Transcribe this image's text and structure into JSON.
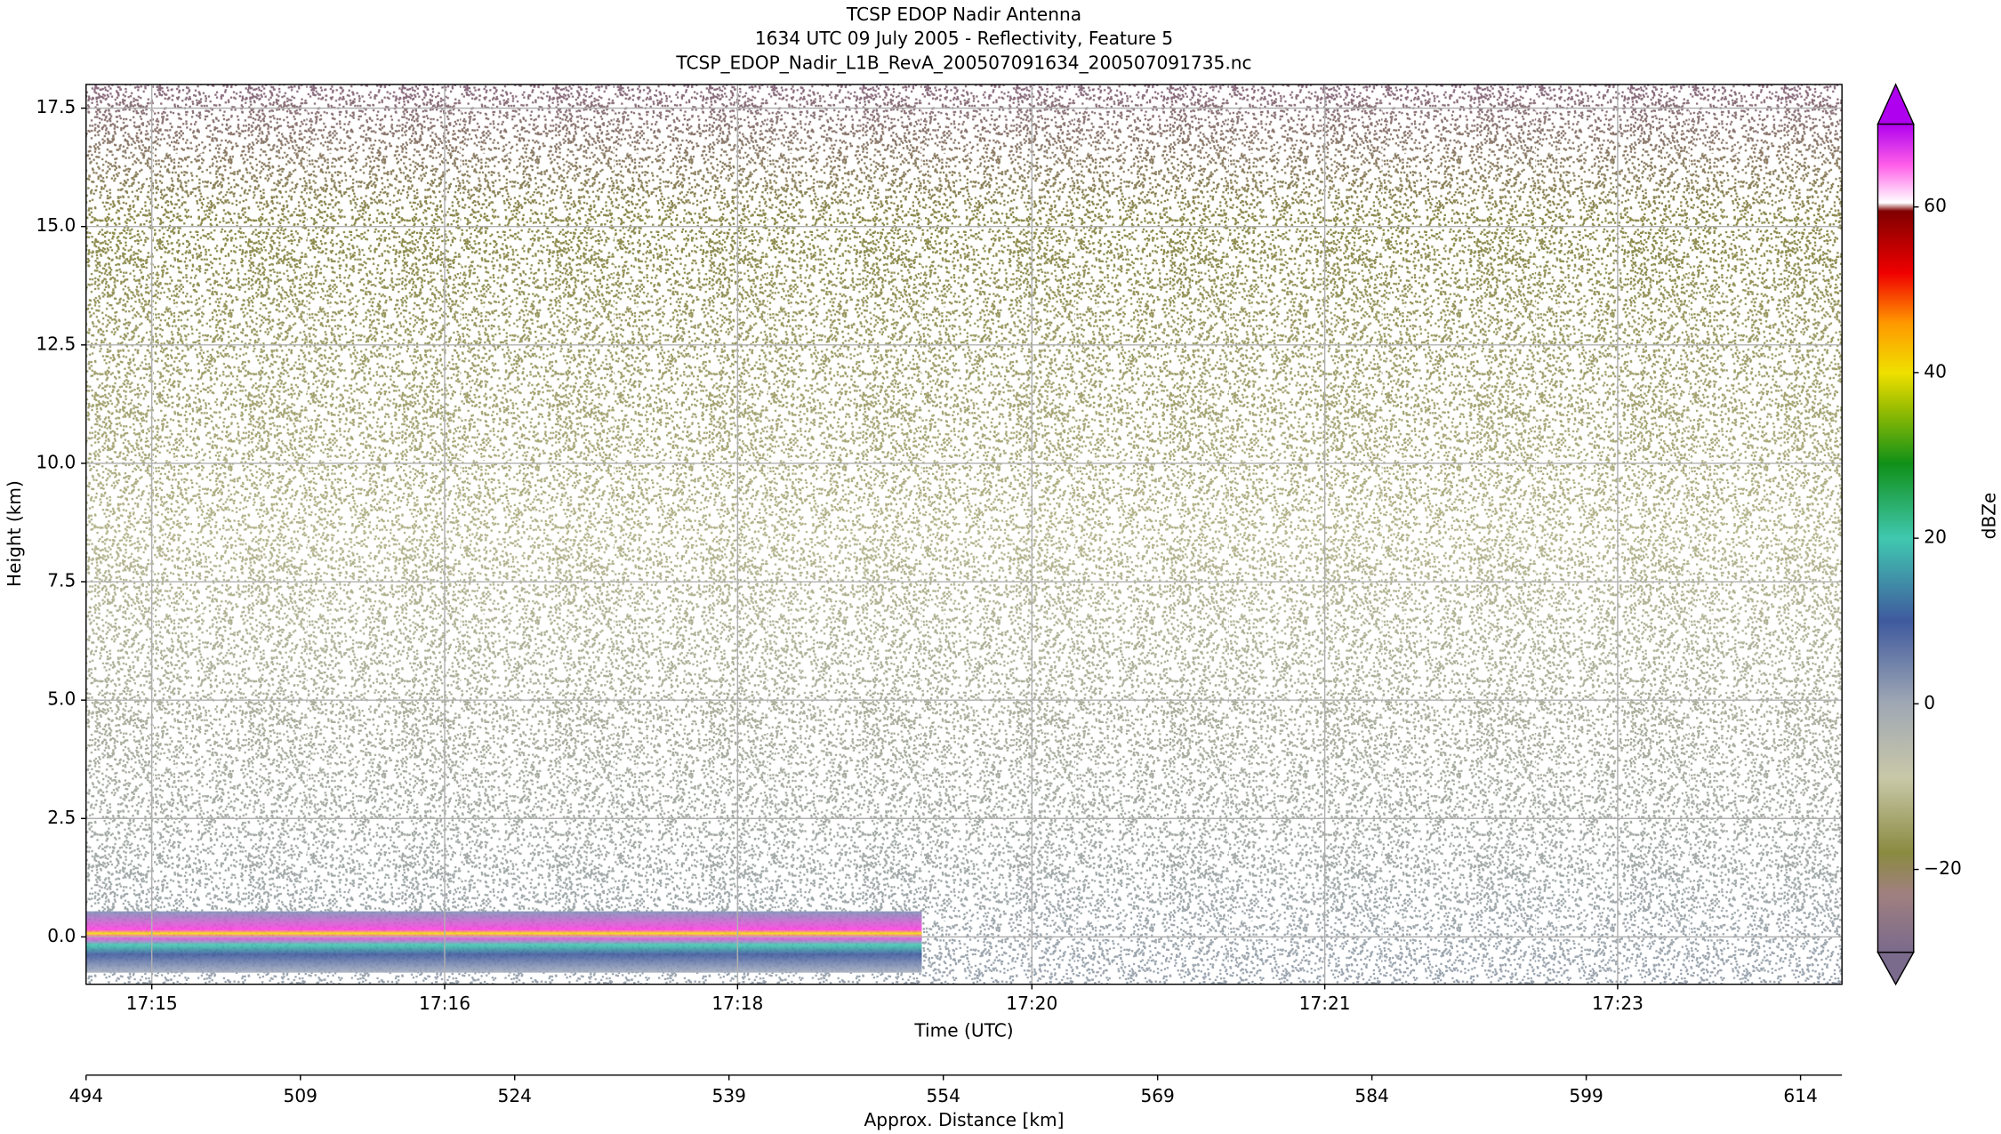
{
  "chart_data": {
    "type": "radar_curtain",
    "title": [
      "TCSP EDOP Nadir Antenna",
      "1634 UTC 09 July 2005 - Reflectivity, Feature 5",
      "TCSP_EDOP_Nadir_L1B_RevA_200507091634_200507091735.nc"
    ],
    "xlabel": "Time (UTC)",
    "ylabel": "Height (km)",
    "x2label": "Approx. Distance [km]",
    "xlim": [
      494,
      616.9
    ],
    "xticks": [
      {
        "value": 498.6,
        "label": "17:15"
      },
      {
        "value": 519.1,
        "label": "17:16"
      },
      {
        "value": 539.6,
        "label": "17:18"
      },
      {
        "value": 560.2,
        "label": "17:20"
      },
      {
        "value": 580.7,
        "label": "17:21"
      },
      {
        "value": 601.2,
        "label": "17:23"
      }
    ],
    "x2ticks": [
      494,
      509,
      524,
      539,
      554,
      569,
      584,
      599,
      614
    ],
    "ylim": [
      -1,
      18
    ],
    "yticks": [
      {
        "value": 0,
        "label": "0.0"
      },
      {
        "value": 2.5,
        "label": "2.5"
      },
      {
        "value": 5,
        "label": "5.0"
      },
      {
        "value": 7.5,
        "label": "7.5"
      },
      {
        "value": 10,
        "label": "10.0"
      },
      {
        "value": 12.5,
        "label": "12.5"
      },
      {
        "value": 15,
        "label": "15.0"
      },
      {
        "value": 17.5,
        "label": "17.5"
      }
    ],
    "grid": true,
    "colorbar": {
      "label": "dBZe",
      "lim": [
        -30,
        70
      ],
      "ticks": [
        {
          "value": -20,
          "label": "−20"
        },
        0,
        20,
        40,
        60
      ],
      "stops": [
        {
          "value": -30,
          "color": "#7a6a8c"
        },
        {
          "value": -23,
          "color": "#a08080"
        },
        {
          "value": -18,
          "color": "#8a8a40"
        },
        {
          "value": -9,
          "color": "#c8c8a8"
        },
        {
          "value": 0,
          "color": "#a0a8b4"
        },
        {
          "value": 10,
          "color": "#3f5a9e"
        },
        {
          "value": 20,
          "color": "#40c8b0"
        },
        {
          "value": 29,
          "color": "#109018"
        },
        {
          "value": 36,
          "color": "#a0c000"
        },
        {
          "value": 40,
          "color": "#f0e000"
        },
        {
          "value": 46,
          "color": "#ff9800"
        },
        {
          "value": 52,
          "color": "#f00000"
        },
        {
          "value": 59.5,
          "color": "#800000"
        },
        {
          "value": 60.5,
          "color": "#ffffff"
        },
        {
          "value": 65,
          "color": "#ff60e8"
        },
        {
          "value": 70,
          "color": "#b000f0"
        }
      ]
    }
  }
}
